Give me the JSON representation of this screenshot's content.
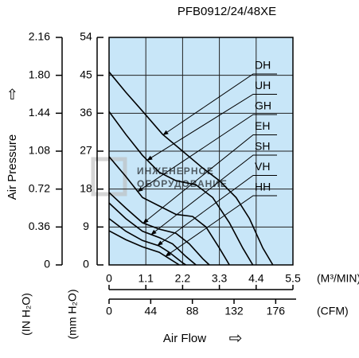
{
  "chart_data": {
    "type": "line",
    "title": "PFB0912/24/48XE",
    "x_label": "Air Flow",
    "y_label": "Air Pressure",
    "x_unit": "(M³/MIN)",
    "x2_unit": "(CFM)",
    "y_unit": "(mm H₂O)",
    "y2_unit": "(IN H₂O)",
    "watermark": [
      "ИНЖЕНЕРНОЕ",
      "ОБОРУДОВАНИЕ"
    ],
    "xlim": [
      0,
      5.5
    ],
    "xticks": [
      0,
      1.1,
      2.2,
      3.3,
      4.4,
      5.5
    ],
    "x2lim": [
      0,
      194.2
    ],
    "x2ticks": [
      0,
      44,
      88,
      132,
      176
    ],
    "ylim": [
      0,
      54
    ],
    "yticks": [
      0,
      9,
      18,
      27,
      36,
      45,
      54
    ],
    "y2lim": [
      0,
      2.16
    ],
    "y2ticks": [
      0,
      0.36,
      0.72,
      1.08,
      1.44,
      {
        "value": 1.8,
        "label": "1.80"
      },
      2.16
    ],
    "grid": true,
    "background": "#c8e6f8",
    "series": [
      {
        "name": "DH",
        "color": "#000000",
        "x": [
          0,
          0.5,
          1,
          1.6,
          2.2,
          2.8,
          3.3,
          3.8,
          4.2,
          4.6,
          4.9
        ],
        "values": [
          45.8,
          41,
          36.5,
          31,
          27,
          23,
          20,
          16,
          11,
          4,
          0
        ]
      },
      {
        "name": "UH",
        "color": "#000000",
        "x": [
          0,
          0.5,
          1,
          1.5,
          2,
          2.6,
          3.1,
          3.6,
          4.0,
          4.3
        ],
        "values": [
          36.4,
          31,
          26,
          22,
          20,
          19,
          16,
          10,
          4,
          0
        ]
      },
      {
        "name": "GH",
        "color": "#000000",
        "x": [
          0,
          0.5,
          1,
          1.5,
          2,
          2.5,
          2.9,
          3.3,
          3.6
        ],
        "values": [
          25.7,
          21,
          16,
          14,
          12,
          11.5,
          9,
          4,
          0
        ]
      },
      {
        "name": "EH",
        "color": "#000000",
        "x": [
          0,
          0.5,
          1,
          1.5,
          2,
          2.4,
          2.8,
          3.0
        ],
        "values": [
          17.2,
          13.5,
          10,
          8.5,
          7.5,
          5,
          1.5,
          0
        ]
      },
      {
        "name": "SH",
        "color": "#000000",
        "x": [
          0,
          0.5,
          1,
          1.5,
          1.9,
          2.3,
          2.6
        ],
        "values": [
          14.7,
          11,
          8,
          6.5,
          5,
          2,
          0
        ]
      },
      {
        "name": "VH",
        "color": "#000000",
        "x": [
          0,
          0.5,
          1,
          1.5,
          1.8,
          2.2,
          2.3
        ],
        "values": [
          11,
          8,
          5.8,
          4.5,
          3,
          0.5,
          0
        ]
      },
      {
        "name": "HH",
        "color": "#000000",
        "x": [
          0,
          0.5,
          1,
          1.5,
          1.8,
          2.1
        ],
        "values": [
          8.1,
          6,
          4.3,
          3,
          1.5,
          0
        ]
      }
    ]
  }
}
